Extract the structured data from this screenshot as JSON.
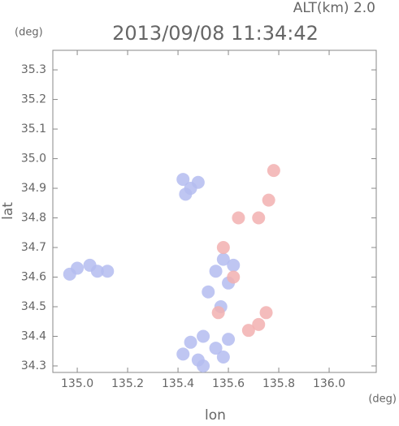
{
  "chart_data": {
    "type": "scatter",
    "title": "2013/09/08 11:34:42",
    "annotation": "ALT(km) 2.0",
    "y_unit": "(deg)",
    "x_unit": "(deg)",
    "xlabel": "lon",
    "ylabel": "lat",
    "xlim": [
      134.903,
      136.187
    ],
    "ylim": [
      34.278,
      35.366
    ],
    "xticks": [
      {
        "value": 135.0,
        "label": "135.0"
      },
      135.2,
      135.4,
      135.6,
      135.8,
      {
        "value": 136.0,
        "label": "136.0"
      }
    ],
    "yticks": [
      34.3,
      34.4,
      34.5,
      34.6,
      34.7,
      34.8,
      34.9,
      {
        "value": 35.0,
        "label": "35.0"
      },
      35.1,
      35.2,
      35.3
    ],
    "series": [
      {
        "color": "#b4bcf0",
        "x": [
          134.97,
          135.0,
          135.05,
          135.08,
          135.12,
          135.42,
          135.45,
          135.48,
          135.43,
          135.55,
          135.58,
          135.62,
          135.6,
          135.52,
          135.57,
          135.45,
          135.5,
          135.55,
          135.48,
          135.42,
          135.58,
          135.6,
          135.5
        ],
        "values": [
          34.61,
          34.63,
          34.64,
          34.62,
          34.62,
          34.93,
          34.9,
          34.92,
          34.88,
          34.62,
          34.66,
          34.64,
          34.58,
          34.55,
          34.5,
          34.38,
          34.4,
          34.36,
          34.32,
          34.34,
          34.33,
          34.39,
          34.3
        ]
      },
      {
        "color": "#f2b0b0",
        "x": [
          135.78,
          135.76,
          135.72,
          135.58,
          135.62,
          135.56,
          135.75,
          135.72,
          135.68,
          135.64
        ],
        "values": [
          34.96,
          34.86,
          34.8,
          34.7,
          34.6,
          34.48,
          34.48,
          34.44,
          34.42,
          34.8
        ]
      }
    ]
  }
}
